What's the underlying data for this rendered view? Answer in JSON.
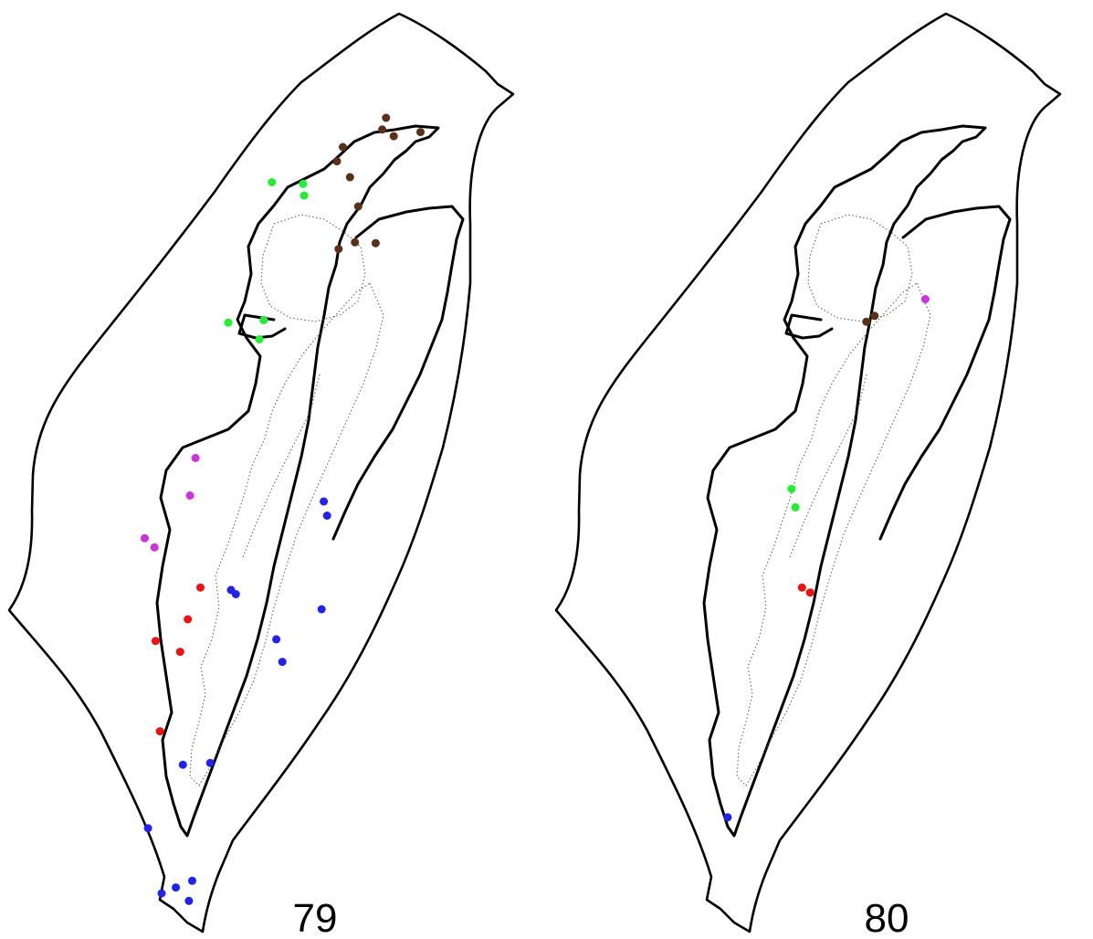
{
  "maps": [
    {
      "label": "79",
      "points": [
        {
          "color": "brown",
          "x": 0.707,
          "y": 0.141
        },
        {
          "color": "brown",
          "x": 0.7,
          "y": 0.155
        },
        {
          "color": "brown",
          "x": 0.721,
          "y": 0.163
        },
        {
          "color": "brown",
          "x": 0.77,
          "y": 0.158
        },
        {
          "color": "brown",
          "x": 0.628,
          "y": 0.176
        },
        {
          "color": "brown",
          "x": 0.617,
          "y": 0.193
        },
        {
          "color": "brown",
          "x": 0.641,
          "y": 0.212
        },
        {
          "color": "brown",
          "x": 0.656,
          "y": 0.247
        },
        {
          "color": "brown",
          "x": 0.62,
          "y": 0.298
        },
        {
          "color": "brown",
          "x": 0.65,
          "y": 0.29
        },
        {
          "color": "brown",
          "x": 0.688,
          "y": 0.291
        },
        {
          "color": "green",
          "x": 0.498,
          "y": 0.218
        },
        {
          "color": "green",
          "x": 0.555,
          "y": 0.22
        },
        {
          "color": "green",
          "x": 0.557,
          "y": 0.234
        },
        {
          "color": "green",
          "x": 0.418,
          "y": 0.386
        },
        {
          "color": "green",
          "x": 0.483,
          "y": 0.383
        },
        {
          "color": "green",
          "x": 0.475,
          "y": 0.406
        },
        {
          "color": "magenta",
          "x": 0.358,
          "y": 0.548
        },
        {
          "color": "magenta",
          "x": 0.348,
          "y": 0.593
        },
        {
          "color": "magenta",
          "x": 0.265,
          "y": 0.644
        },
        {
          "color": "magenta",
          "x": 0.283,
          "y": 0.655
        },
        {
          "color": "red",
          "x": 0.367,
          "y": 0.703
        },
        {
          "color": "red",
          "x": 0.344,
          "y": 0.741
        },
        {
          "color": "red",
          "x": 0.285,
          "y": 0.767
        },
        {
          "color": "red",
          "x": 0.33,
          "y": 0.78
        },
        {
          "color": "red",
          "x": 0.293,
          "y": 0.875
        },
        {
          "color": "blue",
          "x": 0.593,
          "y": 0.6
        },
        {
          "color": "blue",
          "x": 0.599,
          "y": 0.617
        },
        {
          "color": "blue",
          "x": 0.423,
          "y": 0.706
        },
        {
          "color": "blue",
          "x": 0.432,
          "y": 0.711
        },
        {
          "color": "blue",
          "x": 0.589,
          "y": 0.729
        },
        {
          "color": "blue",
          "x": 0.506,
          "y": 0.765
        },
        {
          "color": "blue",
          "x": 0.517,
          "y": 0.792
        },
        {
          "color": "blue",
          "x": 0.335,
          "y": 0.915
        },
        {
          "color": "blue",
          "x": 0.385,
          "y": 0.913
        },
        {
          "color": "blue",
          "x": 0.271,
          "y": 0.991
        },
        {
          "color": "blue",
          "x": 0.296,
          "y": 1.069
        },
        {
          "color": "blue",
          "x": 0.322,
          "y": 1.062
        },
        {
          "color": "blue",
          "x": 0.352,
          "y": 1.054
        },
        {
          "color": "blue",
          "x": 0.346,
          "y": 1.078
        }
      ]
    },
    {
      "label": "80",
      "points": [
        {
          "color": "magenta",
          "x": 0.693,
          "y": 0.358
        },
        {
          "color": "brown",
          "x": 0.585,
          "y": 0.385
        },
        {
          "color": "brown",
          "x": 0.6,
          "y": 0.378
        },
        {
          "color": "green",
          "x": 0.448,
          "y": 0.585
        },
        {
          "color": "green",
          "x": 0.455,
          "y": 0.607
        },
        {
          "color": "red",
          "x": 0.467,
          "y": 0.703
        },
        {
          "color": "red",
          "x": 0.482,
          "y": 0.709
        },
        {
          "color": "blue",
          "x": 0.331,
          "y": 0.978
        }
      ]
    }
  ],
  "colors": {
    "brown": "#5a3018",
    "green": "#22ee33",
    "magenta": "#cc33dd",
    "red": "#ee1111",
    "blue": "#2222ee"
  },
  "icons": {
    "occurrence": "filled-circle"
  }
}
